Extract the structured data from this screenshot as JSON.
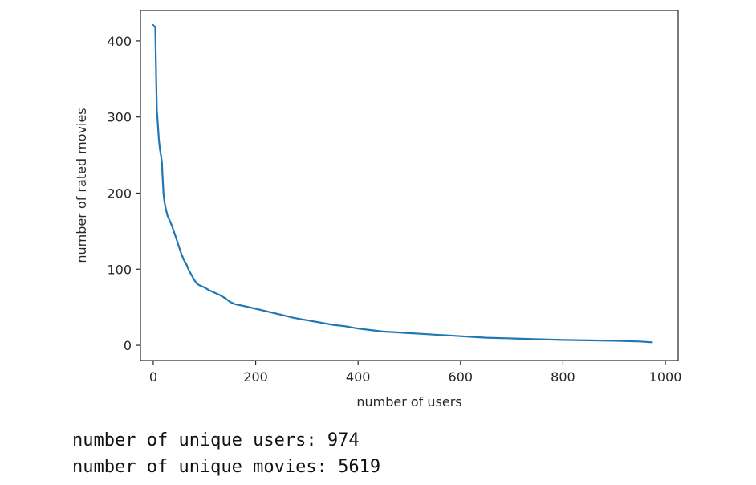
{
  "chart_data": {
    "type": "line",
    "title": "",
    "xlabel": "number of users",
    "ylabel": "number of rated movies",
    "xlim": [
      -25,
      1025
    ],
    "ylim": [
      -20,
      440
    ],
    "x_ticks": [
      0,
      200,
      400,
      600,
      800,
      1000
    ],
    "y_ticks": [
      0,
      100,
      200,
      300,
      400
    ],
    "x_tick_labels": [
      "0",
      "200",
      "400",
      "600",
      "800",
      "1000"
    ],
    "y_tick_labels": [
      "0",
      "100",
      "200",
      "300",
      "400"
    ],
    "grid": false,
    "legend": "none",
    "series": [
      {
        "color": "#1f77b4",
        "points": [
          [
            0,
            421
          ],
          [
            2,
            419
          ],
          [
            4,
            418
          ],
          [
            5,
            380
          ],
          [
            6,
            340
          ],
          [
            7,
            310
          ],
          [
            9,
            290
          ],
          [
            11,
            270
          ],
          [
            13,
            258
          ],
          [
            15,
            250
          ],
          [
            17,
            240
          ],
          [
            18,
            225
          ],
          [
            20,
            200
          ],
          [
            22,
            188
          ],
          [
            25,
            178
          ],
          [
            28,
            170
          ],
          [
            32,
            164
          ],
          [
            36,
            158
          ],
          [
            40,
            150
          ],
          [
            45,
            140
          ],
          [
            50,
            130
          ],
          [
            55,
            120
          ],
          [
            60,
            112
          ],
          [
            65,
            106
          ],
          [
            70,
            98
          ],
          [
            75,
            92
          ],
          [
            80,
            86
          ],
          [
            85,
            81
          ],
          [
            90,
            79
          ],
          [
            100,
            76
          ],
          [
            110,
            72
          ],
          [
            120,
            69
          ],
          [
            130,
            66
          ],
          [
            140,
            62
          ],
          [
            150,
            57
          ],
          [
            160,
            54
          ],
          [
            175,
            52
          ],
          [
            200,
            48
          ],
          [
            225,
            44
          ],
          [
            250,
            40
          ],
          [
            275,
            36
          ],
          [
            300,
            33
          ],
          [
            325,
            30
          ],
          [
            350,
            27
          ],
          [
            375,
            25
          ],
          [
            400,
            22
          ],
          [
            425,
            20
          ],
          [
            450,
            18
          ],
          [
            475,
            17
          ],
          [
            500,
            16
          ],
          [
            525,
            15
          ],
          [
            550,
            14
          ],
          [
            575,
            13
          ],
          [
            600,
            12
          ],
          [
            625,
            11
          ],
          [
            650,
            10
          ],
          [
            700,
            9
          ],
          [
            750,
            8
          ],
          [
            800,
            7
          ],
          [
            850,
            6.5
          ],
          [
            900,
            6
          ],
          [
            950,
            5
          ],
          [
            974,
            4
          ]
        ]
      }
    ]
  },
  "output": {
    "users_line": "number of unique users: 974",
    "movies_line": "number of unique movies: 5619"
  }
}
